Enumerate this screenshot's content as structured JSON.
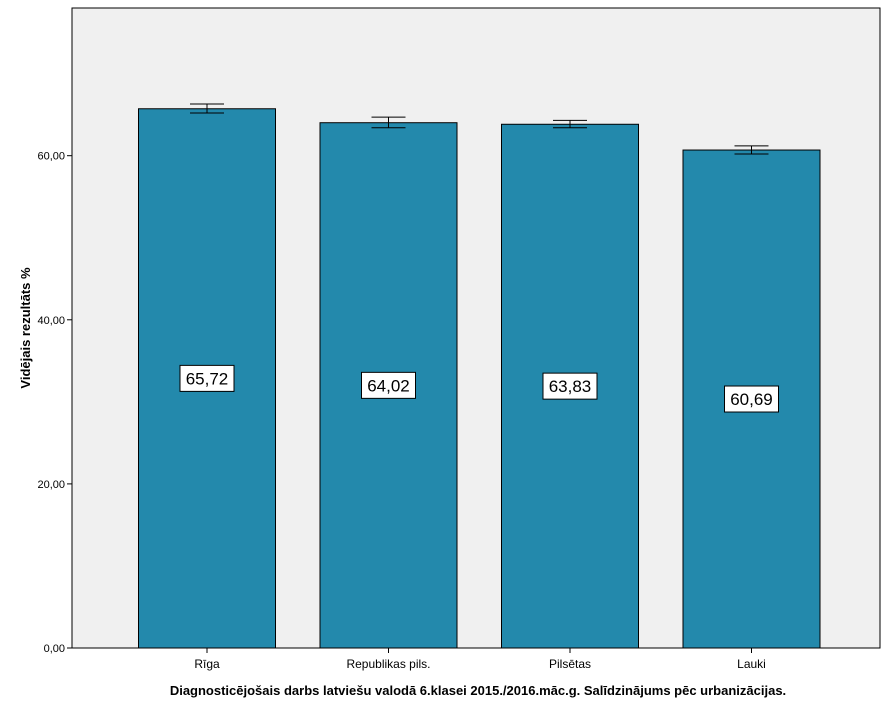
{
  "chart_data": {
    "type": "bar",
    "categories": [
      "Rīga",
      "Republikas pils.",
      "Pilsētas",
      "Lauki"
    ],
    "values": [
      65.72,
      64.02,
      63.83,
      60.69
    ],
    "value_labels": [
      "65,72",
      "64,02",
      "63,83",
      "60,69"
    ],
    "error_bars": [
      {
        "low": 65.2,
        "high": 66.3
      },
      {
        "low": 63.4,
        "high": 64.7
      },
      {
        "low": 63.4,
        "high": 64.3
      },
      {
        "low": 60.2,
        "high": 61.2
      }
    ],
    "xlabel": "Diagnosticējošais darbs latviešu valodā 6.klasei 2015./2016.māc.g. Salīdzinājums pēc urbanizācijas.",
    "ylabel": "Vidējais rezultāts %",
    "ylim": [
      0,
      78
    ],
    "yticks": [
      0,
      20,
      40,
      60
    ],
    "ytick_labels": [
      "0,00",
      "20,00",
      "40,00",
      "60,00"
    ],
    "grid": false,
    "colors": {
      "bar": "#2389ac",
      "plot_background": "#f0f0f0"
    }
  }
}
